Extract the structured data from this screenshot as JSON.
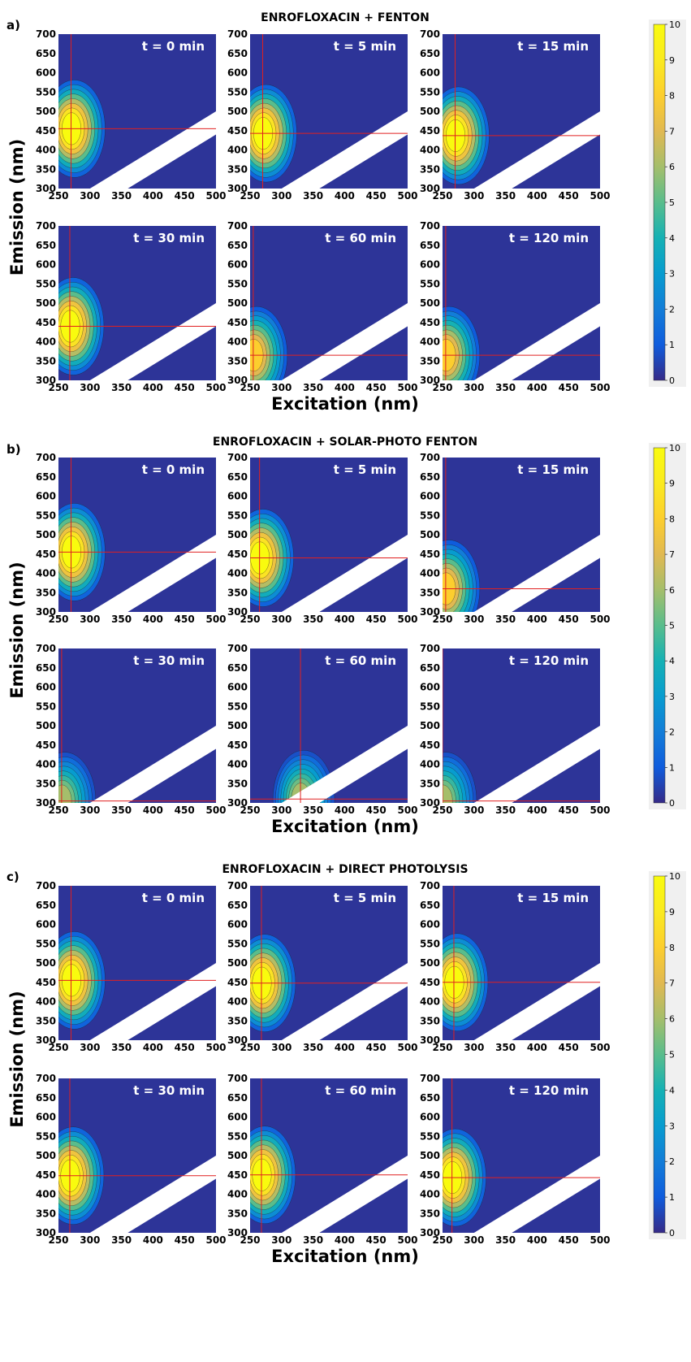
{
  "chart_data": [
    {
      "type": "heatmap",
      "panel_label": "a)",
      "title": "ENROFLOXACIN + FENTON",
      "xlabel": "Excitation (nm)",
      "ylabel": "Emission (nm)",
      "xlim": [
        250,
        500
      ],
      "ylim": [
        300,
        700
      ],
      "x_ticks": [
        250,
        300,
        350,
        400,
        450,
        500
      ],
      "y_ticks": [
        300,
        350,
        400,
        450,
        500,
        550,
        600,
        650,
        700
      ],
      "colorbar": {
        "min": 0,
        "max": 10,
        "ticks": [
          0,
          1,
          2,
          3,
          4,
          5,
          6,
          7,
          8,
          9,
          10
        ],
        "colormap": "parula"
      },
      "subplots": [
        {
          "time_label": "t = 0 min",
          "peak": {
            "ex": 270,
            "em": 455
          },
          "peak_intensity": 10
        },
        {
          "time_label": "t = 5 min",
          "peak": {
            "ex": 270,
            "em": 443
          },
          "peak_intensity": 10
        },
        {
          "time_label": "t = 15 min",
          "peak": {
            "ex": 270,
            "em": 437
          },
          "peak_intensity": 10
        },
        {
          "time_label": "t = 30 min",
          "peak": {
            "ex": 268,
            "em": 440
          },
          "peak_intensity": 10
        },
        {
          "time_label": "t = 60 min",
          "peak": {
            "ex": 255,
            "em": 365
          },
          "peak_intensity": 8
        },
        {
          "time_label": "t = 120 min",
          "peak": {
            "ex": 255,
            "em": 365
          },
          "peak_intensity": 8
        }
      ]
    },
    {
      "type": "heatmap",
      "panel_label": "b)",
      "title": "ENROFLOXACIN + SOLAR-PHOTO FENTON",
      "xlabel": "Excitation (nm)",
      "ylabel": "Emission (nm)",
      "xlim": [
        250,
        500
      ],
      "ylim": [
        300,
        700
      ],
      "x_ticks": [
        250,
        300,
        350,
        400,
        450,
        500
      ],
      "y_ticks": [
        300,
        350,
        400,
        450,
        500,
        550,
        600,
        650,
        700
      ],
      "colorbar": {
        "min": 0,
        "max": 10,
        "ticks": [
          0,
          1,
          2,
          3,
          4,
          5,
          6,
          7,
          8,
          9,
          10
        ],
        "colormap": "parula"
      },
      "subplots": [
        {
          "time_label": "t = 0 min",
          "peak": {
            "ex": 270,
            "em": 455
          },
          "peak_intensity": 10
        },
        {
          "time_label": "t = 5 min",
          "peak": {
            "ex": 265,
            "em": 440
          },
          "peak_intensity": 10
        },
        {
          "time_label": "t = 15 min",
          "peak": {
            "ex": 255,
            "em": 360
          },
          "peak_intensity": 8
        },
        {
          "time_label": "t = 30 min",
          "peak": {
            "ex": 255,
            "em": 305
          },
          "peak_intensity": 6
        },
        {
          "time_label": "t = 60 min",
          "peak": {
            "ex": 330,
            "em": 310
          },
          "peak_intensity": 6
        },
        {
          "time_label": "t = 120 min",
          "peak": {
            "ex": 250,
            "em": 305
          },
          "peak_intensity": 6
        }
      ]
    },
    {
      "type": "heatmap",
      "panel_label": "c)",
      "title": "ENROFLOXACIN + DIRECT PHOTOLYSIS",
      "xlabel": "Excitation (nm)",
      "ylabel": "Emission (nm)",
      "xlim": [
        250,
        500
      ],
      "ylim": [
        300,
        700
      ],
      "x_ticks": [
        250,
        300,
        350,
        400,
        450,
        500
      ],
      "y_ticks": [
        300,
        350,
        400,
        450,
        500,
        550,
        600,
        650,
        700
      ],
      "colorbar": {
        "min": 0,
        "max": 10,
        "ticks": [
          0,
          1,
          2,
          3,
          4,
          5,
          6,
          7,
          8,
          9,
          10
        ],
        "colormap": "parula"
      },
      "subplots": [
        {
          "time_label": "t = 0 min",
          "peak": {
            "ex": 270,
            "em": 455
          },
          "peak_intensity": 10
        },
        {
          "time_label": "t = 5 min",
          "peak": {
            "ex": 268,
            "em": 448
          },
          "peak_intensity": 10
        },
        {
          "time_label": "t = 15 min",
          "peak": {
            "ex": 268,
            "em": 450
          },
          "peak_intensity": 10
        },
        {
          "time_label": "t = 30 min",
          "peak": {
            "ex": 268,
            "em": 448
          },
          "peak_intensity": 10
        },
        {
          "time_label": "t = 60 min",
          "peak": {
            "ex": 268,
            "em": 450
          },
          "peak_intensity": 10
        },
        {
          "time_label": "t = 120 min",
          "peak": {
            "ex": 265,
            "em": 443
          },
          "peak_intensity": 10
        }
      ]
    }
  ]
}
